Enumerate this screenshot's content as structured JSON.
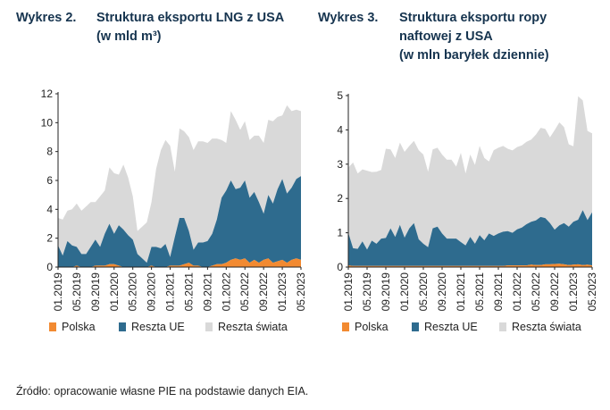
{
  "source": "Źródło: opracowanie własne PIE na podstawie danych EIA.",
  "colors": {
    "polska": "#f28a31",
    "reszta_ue": "#2e6b8e",
    "reszta_swiata": "#d9d9d9",
    "axis": "#222222",
    "title": "#16344f"
  },
  "x_ticks": [
    "01.2019",
    "05.2019",
    "09.2019",
    "01.2020",
    "05.2020",
    "09.2020",
    "01.2021",
    "05.2021",
    "09.2021",
    "01.2022",
    "05.2022",
    "09.2022",
    "01.2023",
    "05.2023"
  ],
  "charts": [
    {
      "number_label": "Wykres 2.",
      "title_lines": [
        "Struktura eksportu LNG z USA",
        "(w mld m³)"
      ],
      "chart_data": {
        "type": "area",
        "stacked": true,
        "title": "Struktura eksportu LNG z USA (w mld m³)",
        "x_tick_labels": [
          "01.2019",
          "05.2019",
          "09.2019",
          "01.2020",
          "05.2020",
          "09.2020",
          "01.2021",
          "05.2021",
          "09.2021",
          "01.2022",
          "05.2022",
          "09.2022",
          "01.2023",
          "05.2023"
        ],
        "ylim": [
          0,
          12
        ],
        "yticks": [
          0,
          2,
          4,
          6,
          8,
          10,
          12
        ],
        "legend": [
          "Polska",
          "Reszta UE",
          "Reszta świata"
        ],
        "legend_position": "bottom",
        "series": [
          {
            "name": "Polska",
            "values": [
              0,
              0,
              0,
              0,
              0.1,
              0,
              0,
              0,
              0.1,
              0.1,
              0.1,
              0.2,
              0.2,
              0.1,
              0,
              0,
              0,
              0,
              0,
              0,
              0.1,
              0,
              0,
              0,
              0.1,
              0.1,
              0.1,
              0.2,
              0.3,
              0.1,
              0.1,
              0,
              0,
              0.1,
              0.2,
              0.2,
              0.3,
              0.5,
              0.6,
              0.5,
              0.6,
              0.3,
              0.5,
              0.3,
              0.5,
              0.6,
              0.3,
              0.4,
              0.5,
              0.3,
              0.5,
              0.6,
              0.5
            ]
          },
          {
            "name": "Reszta UE",
            "values": [
              1.5,
              0.8,
              1.8,
              1.5,
              1.3,
              0.9,
              0.9,
              1.4,
              1.8,
              1.3,
              2.2,
              2.8,
              2.1,
              2.8,
              2.6,
              2.2,
              1.9,
              0.9,
              0.6,
              0.3,
              1.3,
              1.4,
              1.3,
              1.6,
              0.6,
              2,
              3.3,
              3.2,
              2.2,
              1.1,
              1.6,
              1.7,
              1.8,
              2.2,
              3.1,
              4.6,
              5,
              5.5,
              4.8,
              5,
              5.4,
              4.5,
              4.7,
              4.2,
              3.2,
              4.4,
              4.1,
              5,
              5.6,
              4.8,
              5,
              5.5,
              5.8
            ]
          },
          {
            "name": "Reszta świata",
            "values": [
              1.9,
              2.5,
              2.1,
              2.5,
              3,
              3,
              3.3,
              3.1,
              2.6,
              3.5,
              3,
              3.9,
              4.2,
              3.5,
              4.5,
              4,
              3,
              1.6,
              2.2,
              2.8,
              3.1,
              5.4,
              6.8,
              7.2,
              7.7,
              4.5,
              6.2,
              6,
              6.5,
              6.9,
              7,
              7,
              6.8,
              6.6,
              5.6,
              4,
              3.3,
              4.8,
              4.8,
              4,
              4.1,
              4,
              3.9,
              4.6,
              4.9,
              5.2,
              5.7,
              5,
              4.4,
              6.1,
              5.3,
              4.8,
              4.5
            ]
          }
        ]
      }
    },
    {
      "number_label": "Wykres 3.",
      "title_lines": [
        "Struktura eksportu ropy",
        "naftowej z USA",
        "(w mln baryłek dziennie)"
      ],
      "chart_data": {
        "type": "area",
        "stacked": true,
        "title": "Struktura eksportu ropy naftowej z USA (w mln baryłek dziennie)",
        "x_tick_labels": [
          "01.2019",
          "05.2019",
          "09.2019",
          "01.2020",
          "05.2020",
          "09.2020",
          "01.2021",
          "05.2021",
          "09.2021",
          "01.2022",
          "05.2022",
          "09.2022",
          "01.2023",
          "05.2023"
        ],
        "ylim": [
          0,
          5
        ],
        "yticks": [
          0,
          1,
          2,
          3,
          4,
          5
        ],
        "legend": [
          "Polska",
          "Reszta UE",
          "Reszta świata"
        ],
        "legend_position": "bottom",
        "series": [
          {
            "name": "Polska",
            "values": [
              0.05,
              0.03,
              0.03,
              0.03,
              0.03,
              0.03,
              0.03,
              0.03,
              0.03,
              0.03,
              0.03,
              0.03,
              0.03,
              0.03,
              0.03,
              0.03,
              0.03,
              0.03,
              0.03,
              0.03,
              0.03,
              0.03,
              0.03,
              0.03,
              0.03,
              0.03,
              0.03,
              0.03,
              0.03,
              0.03,
              0.03,
              0.03,
              0.03,
              0.03,
              0.05,
              0.05,
              0.05,
              0.05,
              0.05,
              0.07,
              0.06,
              0.06,
              0.08,
              0.08,
              0.09,
              0.1,
              0.08,
              0.06,
              0.07,
              0.08,
              0.06,
              0.07,
              0.05
            ]
          },
          {
            "name": "Reszta UE",
            "values": [
              0.95,
              0.52,
              0.5,
              0.72,
              0.48,
              0.74,
              0.65,
              0.8,
              0.82,
              1.1,
              0.85,
              1.2,
              0.83,
              1.1,
              1.25,
              0.78,
              0.65,
              0.55,
              1.1,
              1.15,
              0.95,
              0.8,
              0.8,
              0.8,
              0.7,
              0.6,
              0.85,
              0.65,
              0.9,
              0.75,
              0.95,
              0.88,
              0.95,
              1.0,
              1.0,
              0.95,
              1.05,
              1.1,
              1.2,
              1.25,
              1.3,
              1.4,
              1.35,
              1.2,
              1.0,
              1.12,
              1.2,
              1.12,
              1.25,
              1.3,
              1.6,
              1.3,
              1.55
            ]
          },
          {
            "name": "Reszta świata",
            "values": [
              1.9,
              2.5,
              2.2,
              2.1,
              2.3,
              2.0,
              2.1,
              2.0,
              2.6,
              2.3,
              2.3,
              2.4,
              2.5,
              2.4,
              2.4,
              2.6,
              2.6,
              2.2,
              2.3,
              2.3,
              2.3,
              2.3,
              2.3,
              2.1,
              2.6,
              2.1,
              2.4,
              2.3,
              2.6,
              2.4,
              2.1,
              2.5,
              2.5,
              2.5,
              2.4,
              2.4,
              2.4,
              2.4,
              2.4,
              2.4,
              2.5,
              2.6,
              2.6,
              2.5,
              2.9,
              3.0,
              2.8,
              2.4,
              2.2,
              3.6,
              3.2,
              2.6,
              2.3
            ]
          }
        ]
      }
    }
  ]
}
